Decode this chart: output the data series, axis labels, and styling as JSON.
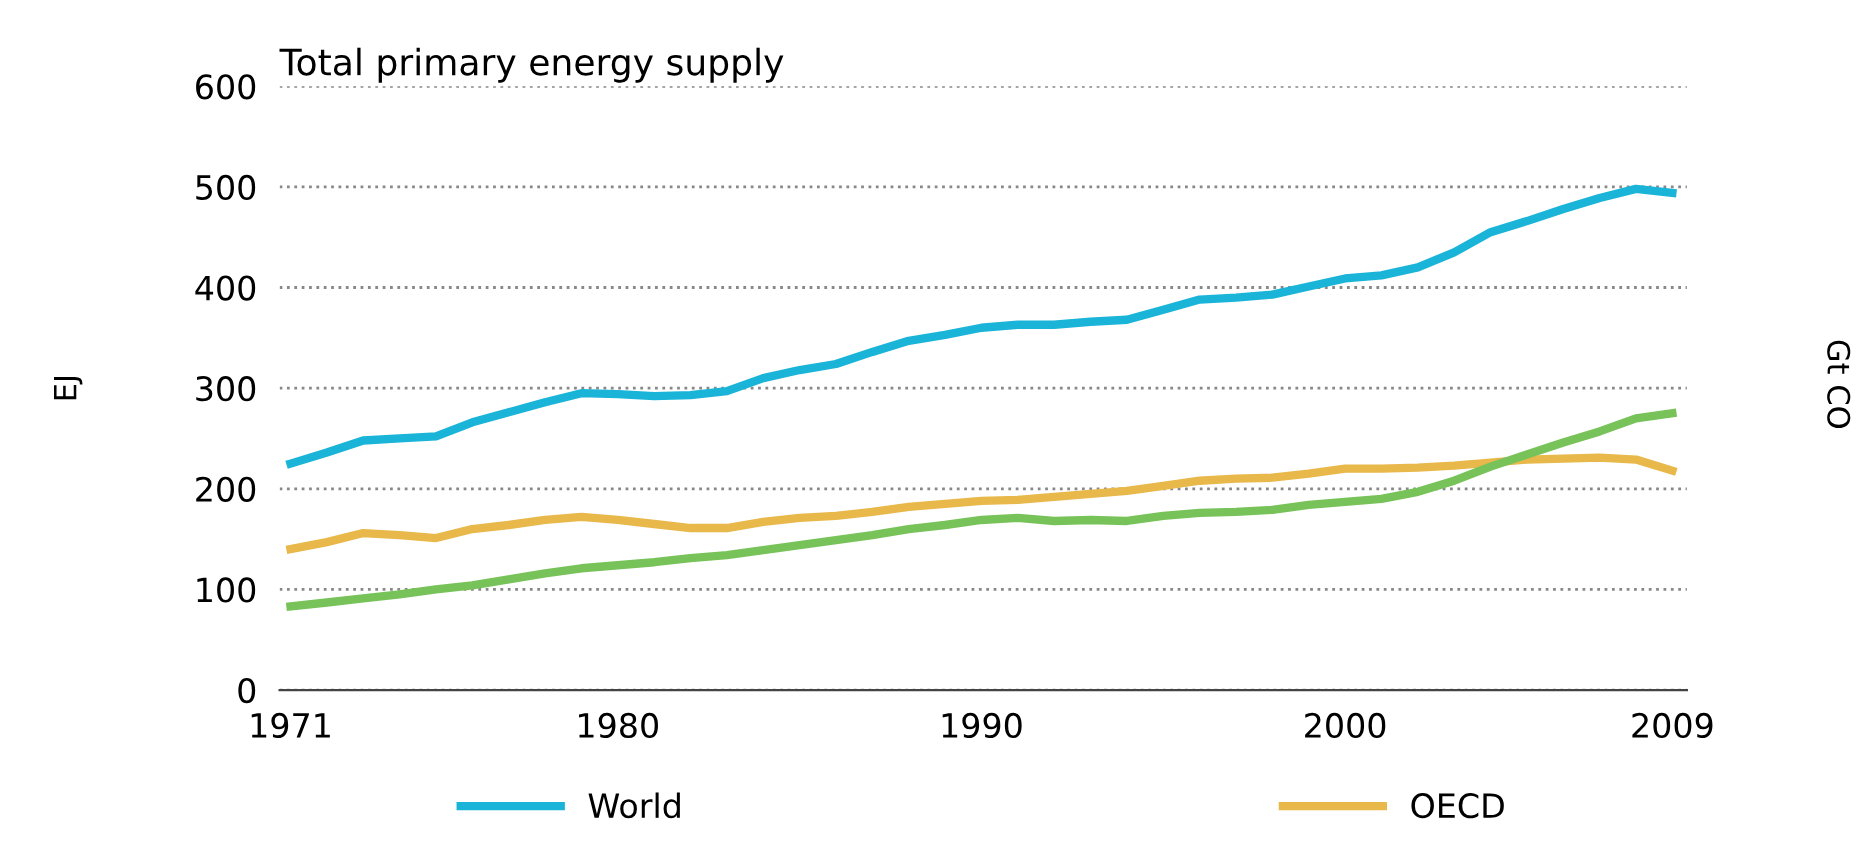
{
  "chart_data": {
    "type": "line",
    "title": "Total primary energy supply",
    "ylabel": "EJ",
    "y2label": "Gt CO",
    "x": [
      1971,
      1972,
      1973,
      1974,
      1975,
      1976,
      1977,
      1978,
      1979,
      1980,
      1981,
      1982,
      1983,
      1984,
      1985,
      1986,
      1987,
      1988,
      1989,
      1990,
      1991,
      1992,
      1993,
      1994,
      1995,
      1996,
      1997,
      1998,
      1999,
      2000,
      2001,
      2002,
      2003,
      2004,
      2005,
      2006,
      2007,
      2008,
      2009
    ],
    "series": [
      {
        "name": "World",
        "color": "#1ab4d8",
        "values": [
          225,
          236,
          248,
          250,
          252,
          266,
          276,
          286,
          295,
          294,
          292,
          293,
          297,
          310,
          318,
          324,
          336,
          347,
          353,
          360,
          363,
          363,
          366,
          368,
          378,
          388,
          390,
          393,
          401,
          409,
          412,
          420,
          435,
          455,
          466,
          478,
          489,
          498,
          494
        ]
      },
      {
        "name": "OECD",
        "color": "#e8b84a",
        "values": [
          140,
          147,
          156,
          154,
          151,
          160,
          164,
          169,
          172,
          169,
          165,
          161,
          161,
          167,
          171,
          173,
          177,
          182,
          185,
          188,
          189,
          192,
          195,
          198,
          203,
          208,
          210,
          211,
          215,
          220,
          220,
          221,
          223,
          226,
          229,
          230,
          231,
          229,
          218
        ]
      },
      {
        "color": "#77c35a",
        "values": [
          83,
          87,
          91,
          95,
          100,
          104,
          110,
          116,
          121,
          124,
          127,
          131,
          134,
          139,
          144,
          149,
          154,
          160,
          164,
          169,
          171,
          168,
          169,
          168,
          173,
          176,
          177,
          179,
          184,
          187,
          190,
          197,
          208,
          222,
          234,
          246,
          257,
          270,
          275
        ]
      }
    ],
    "xlim": [
      1970.7,
      2009.4
    ],
    "xticks": [
      1971,
      1980,
      1990,
      2000,
      2009
    ],
    "ylim": [
      0,
      600
    ],
    "yticks": [
      0,
      100,
      200,
      300,
      400,
      500,
      600
    ],
    "grid": "y",
    "legend": "bottom",
    "marker": "none",
    "line_style": "solid"
  }
}
